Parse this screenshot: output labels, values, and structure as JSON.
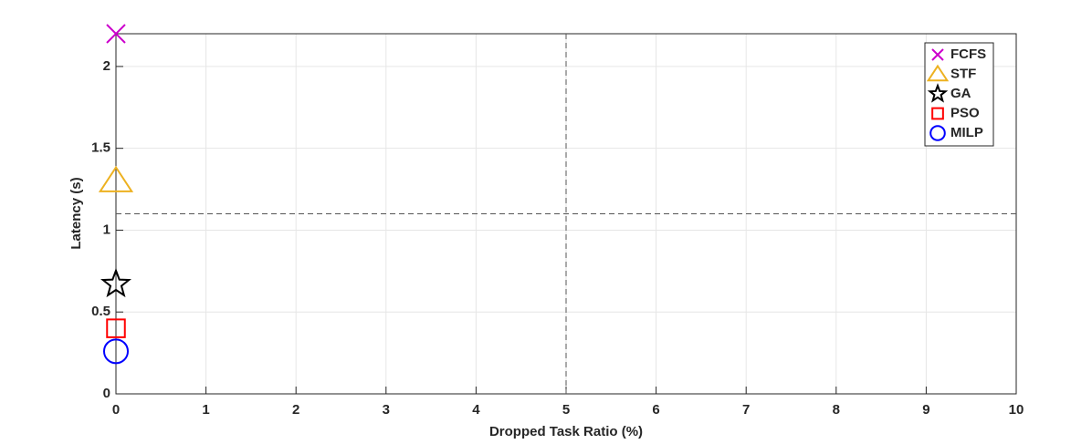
{
  "chart_data": {
    "type": "scatter",
    "xlabel": "Dropped Task Ratio (%)",
    "ylabel": "Latency (s)",
    "xlim": [
      0,
      10
    ],
    "xticks": [
      0,
      1,
      2,
      3,
      4,
      5,
      6,
      7,
      8,
      9,
      10
    ],
    "ylim": [
      0,
      2.2
    ],
    "yticks": [
      0,
      0.5,
      1,
      1.5,
      2
    ],
    "grid": true,
    "legend": "upper right",
    "vline": 5,
    "hline": 1.1,
    "series": [
      {
        "name": "FCFS",
        "color": "#cc00cc",
        "marker": "x",
        "x": [
          0
        ],
        "values": [
          2.2
        ]
      },
      {
        "name": "STF",
        "color": "#edb120",
        "marker": "triangle",
        "x": [
          0
        ],
        "values": [
          1.3
        ]
      },
      {
        "name": "GA",
        "color": "#000000",
        "marker": "star",
        "x": [
          0
        ],
        "values": [
          0.67
        ]
      },
      {
        "name": "PSO",
        "color": "#ff0000",
        "marker": "square",
        "x": [
          0
        ],
        "values": [
          0.4
        ]
      },
      {
        "name": "MILP",
        "color": "#0000ff",
        "marker": "circle",
        "x": [
          0
        ],
        "values": [
          0.26
        ]
      }
    ]
  }
}
